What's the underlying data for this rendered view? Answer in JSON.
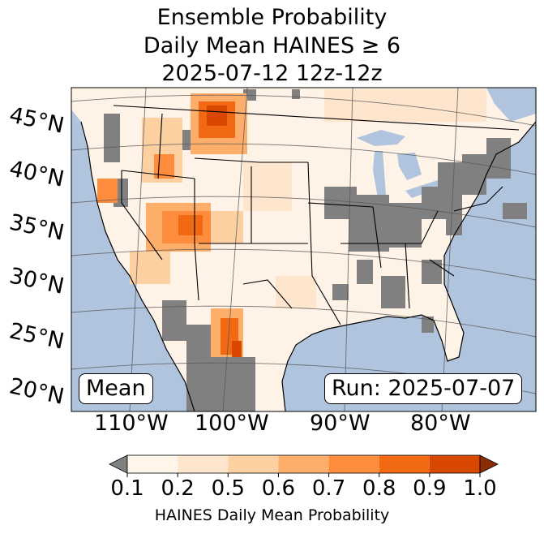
{
  "title": {
    "line1": "Ensemble Probability",
    "line2": "Daily Mean HAINES ≥ 6",
    "line3": "2025-07-12 12z-12z"
  },
  "map": {
    "ocean_color": "#b0c4de",
    "land_color": "#fff2e6",
    "nodata_color": "#808080",
    "lat_labels": [
      "45°N",
      "40°N",
      "35°N",
      "30°N",
      "25°N",
      "20°N"
    ],
    "lon_labels": [
      "110°W",
      "100°W",
      "90°W",
      "80°W"
    ],
    "stat_label": "Mean",
    "run_label": "Run: 2025-07-07"
  },
  "colorbar": {
    "ticks": [
      "0.1",
      "0.2",
      "0.5",
      "0.6",
      "0.7",
      "0.8",
      "0.9",
      "1.0"
    ],
    "colors": [
      "#fff5eb",
      "#fee6ce",
      "#fdd0a2",
      "#fdae6b",
      "#fd8d3c",
      "#f16913",
      "#d94801"
    ],
    "under_color": "#808080",
    "over_color": "#8c2d04",
    "label": "HAINES Daily Mean Probability"
  }
}
